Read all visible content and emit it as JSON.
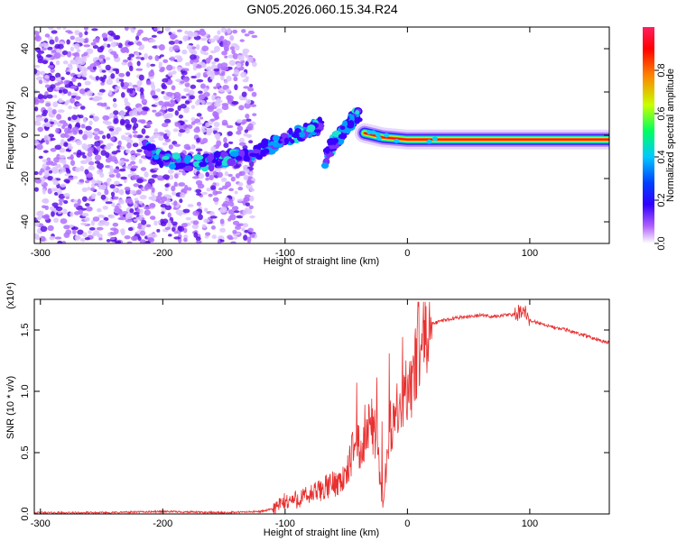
{
  "title": "GN05.2026.060.15.34.R24",
  "chart_data": [
    {
      "type": "heatmap",
      "xlabel": "Height of straight line (km)",
      "ylabel": "Frequency (Hz)",
      "xlim": [
        -305,
        165
      ],
      "ylim": [
        -50,
        50
      ],
      "xticks": [
        -300,
        -200,
        -100,
        0,
        100
      ],
      "yticks": [
        -40,
        -20,
        0,
        20,
        40
      ],
      "colorbar": {
        "label": "Normalized spectral amplitude",
        "range": [
          0,
          1
        ],
        "ticks": [
          "0.0",
          "0.2",
          "0.4",
          "0.6",
          "0.8"
        ],
        "colormap": [
          "#ffffff",
          "#b060ff",
          "#3000ff",
          "#0040ff",
          "#00c8ff",
          "#00ff60",
          "#c8ff00",
          "#ff8000",
          "#ff0000",
          "#ff2060"
        ]
      },
      "features": [
        {
          "name": "noise-scatter",
          "x_range": [
            -305,
            -125
          ],
          "y_range": [
            -50,
            50
          ],
          "amplitude": 0.1
        },
        {
          "name": "signal-track",
          "points": [
            [
              -215,
              -6
            ],
            [
              -200,
              -11
            ],
            [
              -180,
              -13
            ],
            [
              -160,
              -12
            ],
            [
              -140,
              -10
            ],
            [
              -120,
              -7
            ],
            [
              -100,
              -2
            ],
            [
              -80,
              3
            ],
            [
              -70,
              5
            ]
          ],
          "amplitude": 0.25
        },
        {
          "name": "signal-branch",
          "points": [
            [
              -68,
              -12
            ],
            [
              -60,
              -3
            ],
            [
              -52,
              2
            ],
            [
              -45,
              7
            ],
            [
              -40,
              10
            ]
          ],
          "amplitude": 0.25
        },
        {
          "name": "carrier-line",
          "points": [
            [
              -35,
              1
            ],
            [
              -20,
              -1
            ],
            [
              0,
              -2
            ],
            [
              50,
              -2
            ],
            [
              100,
              -2
            ],
            [
              165,
              -2
            ]
          ],
          "amplitude": 0.95
        }
      ]
    },
    {
      "type": "line",
      "xlabel": "Height of straight line (km)",
      "ylabel": "SNR (10 * v/v)",
      "yscale_label": "(x10⁴)",
      "xlim": [
        -305,
        165
      ],
      "ylim": [
        0,
        1.75
      ],
      "xticks": [
        -300,
        -200,
        -100,
        0,
        100
      ],
      "yticks": [
        "0.0",
        "0.5",
        "1.0",
        "1.5"
      ],
      "series": [
        {
          "name": "SNR",
          "color": "#e83030",
          "x": [
            -305,
            -250,
            -200,
            -150,
            -120,
            -110,
            -100,
            -90,
            -80,
            -70,
            -60,
            -50,
            -45,
            -40,
            -35,
            -30,
            -25,
            -20,
            -15,
            -10,
            -5,
            0,
            5,
            10,
            15,
            20,
            30,
            40,
            50,
            60,
            70,
            80,
            90,
            95,
            100,
            110,
            120,
            130,
            140,
            150,
            160,
            165
          ],
          "y": [
            0.01,
            0.01,
            0.02,
            0.01,
            0.02,
            0.04,
            0.1,
            0.12,
            0.15,
            0.2,
            0.25,
            0.3,
            0.5,
            0.55,
            0.6,
            0.75,
            0.6,
            0.05,
            0.7,
            0.8,
            0.85,
            1.0,
            1.15,
            1.3,
            1.45,
            1.55,
            1.58,
            1.6,
            1.61,
            1.62,
            1.61,
            1.62,
            1.63,
            1.65,
            1.58,
            1.55,
            1.52,
            1.5,
            1.47,
            1.44,
            1.41,
            1.4
          ]
        }
      ]
    }
  ]
}
